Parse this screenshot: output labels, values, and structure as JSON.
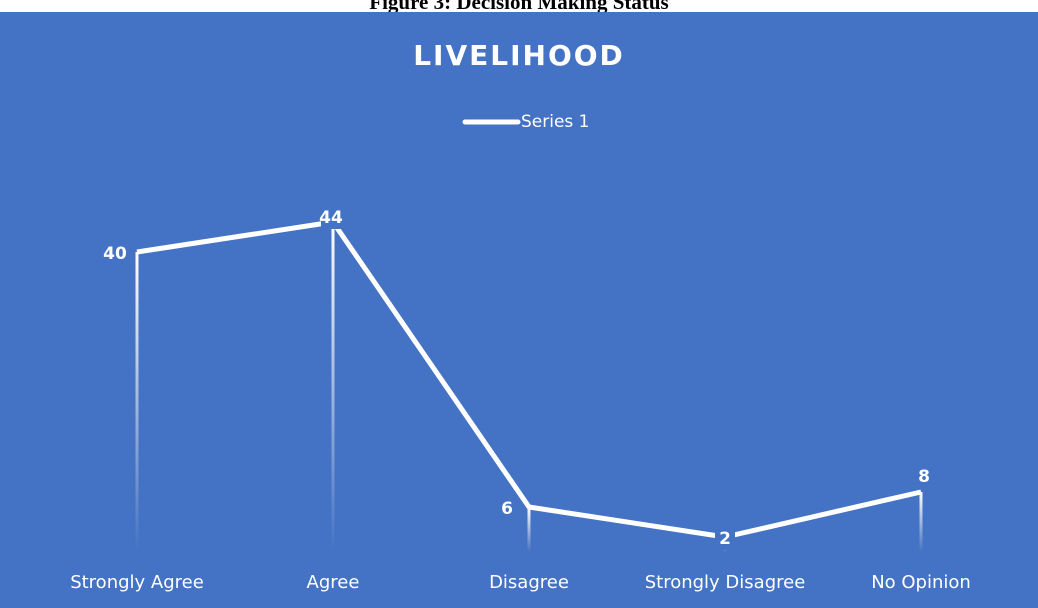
{
  "figure_caption": "Figure 3: Decision Making Status",
  "chart_data": {
    "type": "line",
    "title": "LIVELIHOOD",
    "categories": [
      "Strongly Agree",
      "Agree",
      "Disagree",
      "Strongly Disagree",
      "No Opinion"
    ],
    "series": [
      {
        "name": "Series 1",
        "color": "#ffffff",
        "values": [
          40,
          44,
          6,
          2,
          8
        ]
      }
    ],
    "ylim": [
      0,
      50
    ],
    "legend": "top",
    "background": "#4472c4",
    "drop_lines": true
  }
}
